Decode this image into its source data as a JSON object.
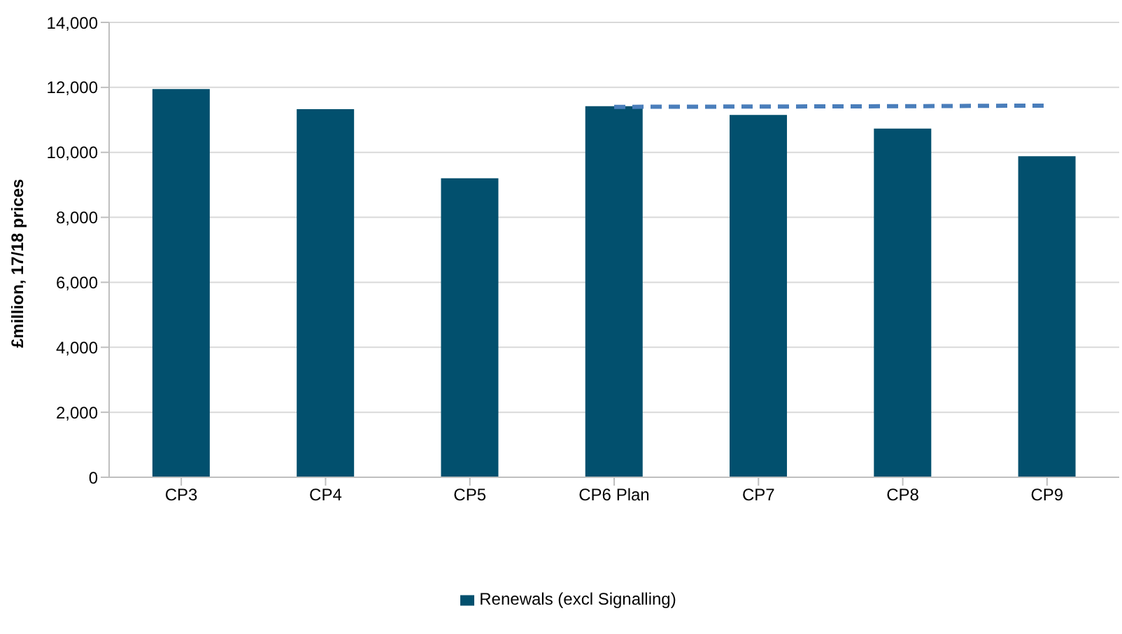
{
  "chart_data": {
    "type": "bar",
    "ylabel": "£million, 17/18 prices",
    "categories": [
      "CP3",
      "CP4",
      "CP5",
      "CP6 Plan",
      "CP7",
      "CP8",
      "CP9"
    ],
    "series": [
      {
        "name": "Renewals (excl Signalling)",
        "color": "#02506e",
        "values": [
          11950,
          11330,
          9200,
          11420,
          11150,
          10730,
          9880
        ]
      },
      {
        "type": "line",
        "color": "#4a7ebb",
        "line_style": "dashed",
        "marker": "none",
        "values": [
          null,
          null,
          null,
          11400,
          11410,
          11420,
          11440
        ]
      }
    ],
    "ylim": [
      0,
      14000
    ],
    "yticks": [
      0,
      {
        "value": 2000,
        "label": "2,000"
      },
      {
        "value": 4000,
        "label": "4,000"
      },
      {
        "value": 6000,
        "label": "6,000"
      },
      {
        "value": 8000,
        "label": "8,000"
      },
      {
        "value": 10000,
        "label": "10,000"
      },
      {
        "value": 12000,
        "label": "12,000"
      },
      {
        "value": 14000,
        "label": "14,000"
      }
    ],
    "grid": "y",
    "legend": "bottom"
  }
}
